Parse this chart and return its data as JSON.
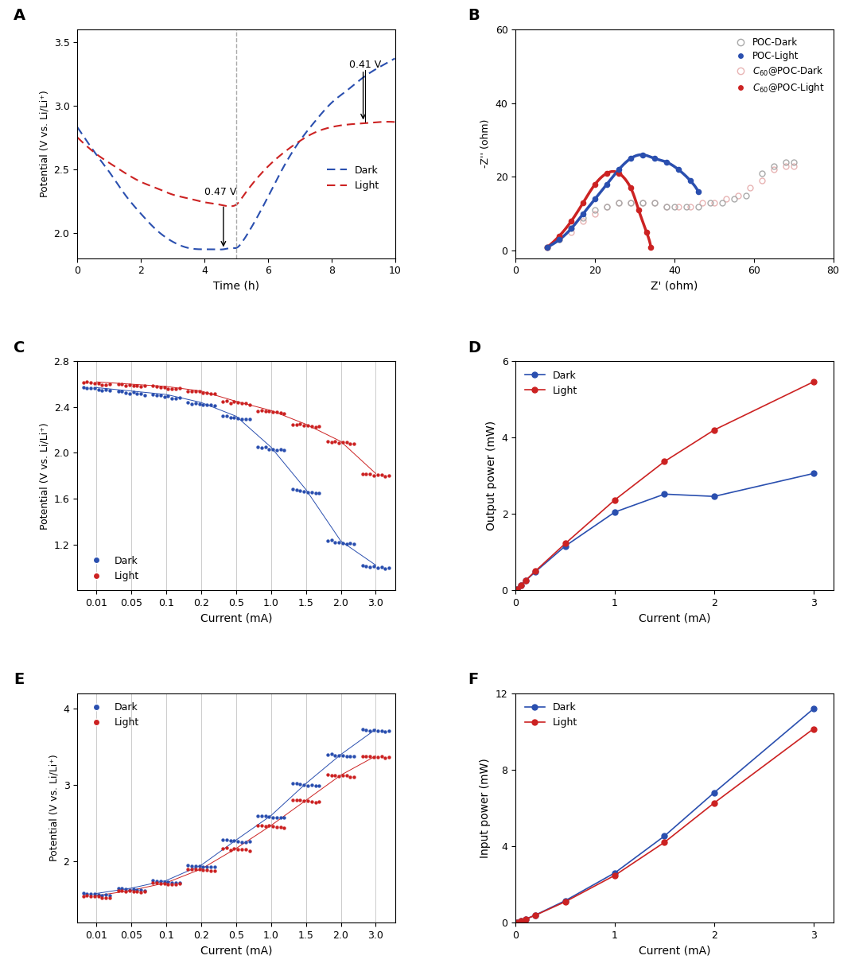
{
  "panel_A": {
    "dark_x": [
      0,
      0.3,
      0.7,
      1.0,
      1.5,
      2.0,
      2.5,
      3.0,
      3.5,
      4.0,
      4.3,
      4.6,
      4.9,
      5.0,
      5.2,
      5.5,
      6.0,
      6.5,
      7.0,
      7.5,
      8.0,
      8.5,
      9.0,
      9.5,
      10.0
    ],
    "dark_y": [
      2.83,
      2.72,
      2.58,
      2.48,
      2.3,
      2.15,
      2.02,
      1.93,
      1.88,
      1.87,
      1.87,
      1.87,
      1.88,
      1.88,
      1.93,
      2.05,
      2.28,
      2.52,
      2.72,
      2.88,
      3.02,
      3.12,
      3.22,
      3.3,
      3.37
    ],
    "light_x": [
      0,
      0.3,
      0.7,
      1.0,
      1.5,
      2.0,
      2.5,
      3.0,
      3.5,
      4.0,
      4.5,
      4.9,
      5.0,
      5.2,
      5.5,
      6.0,
      6.5,
      7.0,
      7.5,
      8.0,
      8.5,
      9.0,
      9.5,
      10.0
    ],
    "light_y": [
      2.75,
      2.68,
      2.6,
      2.55,
      2.47,
      2.4,
      2.35,
      2.3,
      2.27,
      2.24,
      2.22,
      2.21,
      2.22,
      2.28,
      2.38,
      2.52,
      2.63,
      2.72,
      2.79,
      2.83,
      2.85,
      2.86,
      2.87,
      2.87
    ],
    "vline_x": 5.0,
    "xlabel": "Time (h)",
    "ylabel": "Potential (V vs. Li/Li⁺)",
    "ylim": [
      1.8,
      3.6
    ],
    "xlim": [
      0,
      10
    ],
    "yticks": [
      2.0,
      2.5,
      3.0,
      3.5
    ],
    "xticks": [
      0,
      2,
      4,
      6,
      8,
      10
    ]
  },
  "panel_B": {
    "poc_dark_x": [
      8,
      11,
      14,
      17,
      20,
      23,
      26,
      29,
      32,
      35,
      38,
      40,
      43,
      46,
      49,
      52,
      55,
      58,
      62,
      65,
      68,
      70
    ],
    "poc_dark_y": [
      1,
      3,
      6,
      9,
      11,
      12,
      13,
      13,
      13,
      13,
      12,
      12,
      12,
      12,
      13,
      13,
      14,
      15,
      21,
      23,
      24,
      24
    ],
    "poc_light_x": [
      8,
      11,
      14,
      17,
      20,
      23,
      26,
      29,
      32,
      35,
      38,
      41,
      44,
      46
    ],
    "poc_light_y": [
      1,
      3,
      6,
      10,
      14,
      18,
      22,
      25,
      26,
      25,
      24,
      22,
      19,
      16
    ],
    "c60poc_dark_x": [
      8,
      11,
      14,
      17,
      20,
      23,
      26,
      29,
      32,
      35,
      38,
      41,
      44,
      47,
      50,
      53,
      56,
      59,
      62,
      65,
      68,
      70
    ],
    "c60poc_dark_y": [
      1,
      3,
      5,
      8,
      10,
      12,
      13,
      13,
      13,
      13,
      12,
      12,
      12,
      13,
      13,
      14,
      15,
      17,
      19,
      22,
      23,
      23
    ],
    "c60poc_light_x": [
      8,
      11,
      14,
      17,
      20,
      23,
      26,
      29,
      31,
      33,
      34
    ],
    "c60poc_light_y": [
      1,
      4,
      8,
      13,
      18,
      21,
      21,
      17,
      11,
      5,
      1
    ],
    "xlabel": "Z' (ohm)",
    "ylabel": "-Z'' (ohm)",
    "ylim": [
      -2,
      60
    ],
    "xlim": [
      0,
      80
    ],
    "yticks": [
      0,
      20,
      40,
      60
    ],
    "xticks": [
      0,
      20,
      40,
      60,
      80
    ]
  },
  "panel_C": {
    "currents_x": [
      0.01,
      0.05,
      0.1,
      0.2,
      0.5,
      1.0,
      1.5,
      2.0,
      3.0
    ],
    "dark_voltages": [
      2.57,
      2.54,
      2.51,
      2.44,
      2.32,
      2.05,
      1.68,
      1.23,
      1.02
    ],
    "light_voltages": [
      2.62,
      2.6,
      2.58,
      2.54,
      2.45,
      2.37,
      2.25,
      2.1,
      1.82
    ],
    "xlabel": "Current (mA)",
    "ylabel": "Potential (V vs. Li/Li⁺)",
    "ylim": [
      0.8,
      2.8
    ],
    "yticks": [
      1.2,
      1.6,
      2.0,
      2.4,
      2.8
    ],
    "xtick_labels": [
      "0.01",
      "0.05",
      "0.1",
      "0.2",
      "0.5",
      "1.0",
      "1.5",
      "2.0",
      "3.0"
    ]
  },
  "panel_D": {
    "dark_x": [
      0.01,
      0.05,
      0.1,
      0.2,
      0.5,
      1.0,
      1.5,
      2.0,
      3.0
    ],
    "dark_y": [
      0.026,
      0.127,
      0.251,
      0.488,
      1.16,
      2.05,
      2.52,
      2.46,
      3.06
    ],
    "light_x": [
      0.01,
      0.05,
      0.1,
      0.2,
      0.5,
      1.0,
      1.5,
      2.0,
      3.0
    ],
    "light_y": [
      0.026,
      0.13,
      0.258,
      0.508,
      1.225,
      2.37,
      3.375,
      4.2,
      5.46
    ],
    "xlabel": "Current (mA)",
    "ylabel": "Output power (mW)",
    "ylim": [
      0,
      6
    ],
    "xlim": [
      0,
      3.2
    ],
    "yticks": [
      0,
      2,
      4,
      6
    ],
    "xticks": [
      0,
      1,
      2,
      3
    ]
  },
  "panel_E": {
    "currents_x": [
      0.01,
      0.05,
      0.1,
      0.2,
      0.5,
      1.0,
      1.5,
      2.0,
      3.0
    ],
    "dark_voltages": [
      1.58,
      1.65,
      1.75,
      1.95,
      2.28,
      2.6,
      3.02,
      3.4,
      3.73
    ],
    "light_voltages": [
      1.55,
      1.62,
      1.72,
      1.9,
      2.17,
      2.47,
      2.8,
      3.13,
      3.38
    ],
    "xlabel": "Current (mA)",
    "ylabel": "Potential (V vs. Li/Li⁺)",
    "ylim": [
      1.2,
      4.2
    ],
    "yticks": [
      2,
      3,
      4
    ],
    "xtick_labels": [
      "0.01",
      "0.05",
      "0.1",
      "0.2",
      "0.5",
      "1.0",
      "1.5",
      "2.0",
      "3.0"
    ]
  },
  "panel_F": {
    "dark_x": [
      0.01,
      0.05,
      0.1,
      0.2,
      0.5,
      1.0,
      1.5,
      2.0,
      3.0
    ],
    "dark_y": [
      0.016,
      0.0825,
      0.175,
      0.39,
      1.14,
      2.6,
      4.53,
      6.8,
      11.19
    ],
    "light_x": [
      0.01,
      0.05,
      0.1,
      0.2,
      0.5,
      1.0,
      1.5,
      2.0,
      3.0
    ],
    "light_y": [
      0.016,
      0.081,
      0.172,
      0.38,
      1.085,
      2.47,
      4.2,
      6.26,
      10.14
    ],
    "xlabel": "Current (mA)",
    "ylabel": "Input power (mW)",
    "ylim": [
      0,
      12
    ],
    "xlim": [
      0,
      3.2
    ],
    "yticks": [
      0,
      4,
      8,
      12
    ],
    "xticks": [
      0,
      1,
      2,
      3
    ]
  },
  "colors": {
    "dark_blue": "#2a4faf",
    "light_red": "#cc2222",
    "poc_dark_gray": "#aaaaaa",
    "c60poc_dark_pink": "#e8b4b4"
  }
}
